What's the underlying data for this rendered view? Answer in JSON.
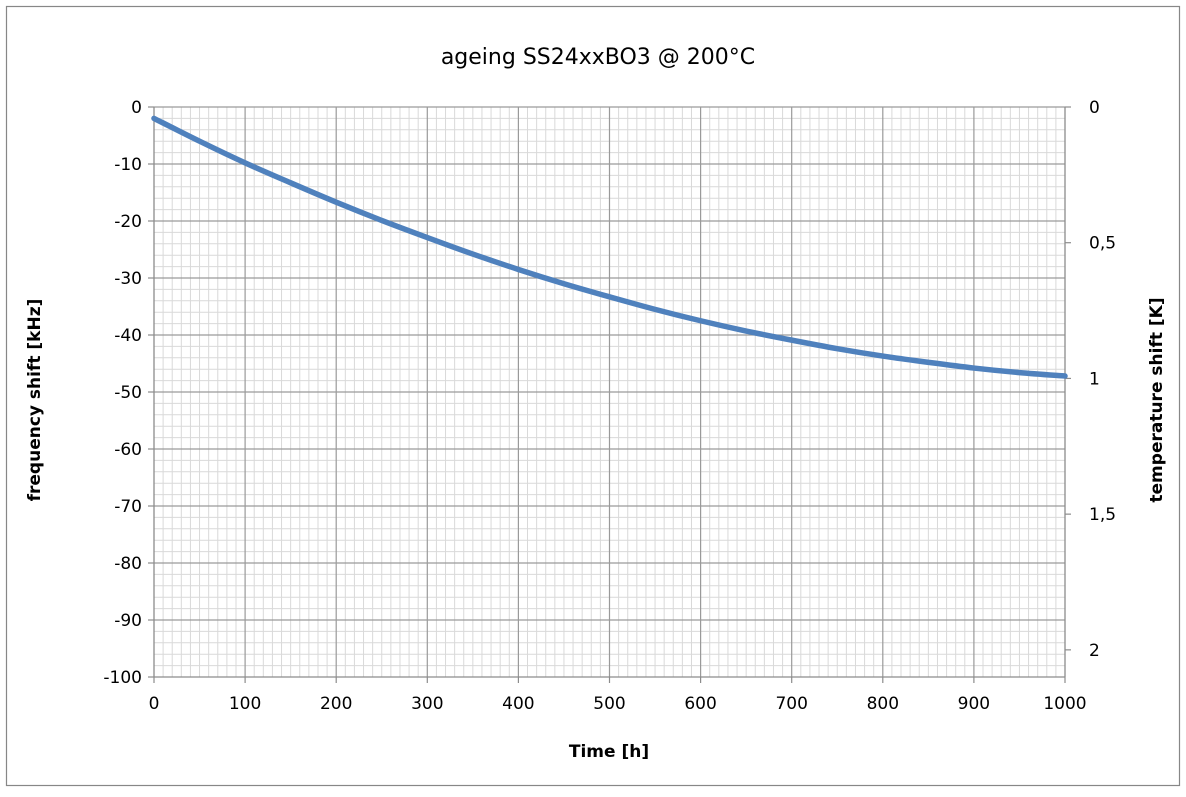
{
  "chart_data": {
    "type": "line",
    "title": "ageing SS24xxBO3 @ 200°C",
    "xlabel": "Time [h]",
    "ylabel": "frequency shift [kHz]",
    "y2label": "temperature shift [K]",
    "xlim": [
      0,
      1000
    ],
    "ylim": [
      -100,
      0
    ],
    "y2lim": [
      2.1,
      0
    ],
    "y2_reversed": true,
    "grid": true,
    "legend": "none",
    "x_ticks": [
      "0",
      "100",
      "200",
      "300",
      "400",
      "500",
      "600",
      "700",
      "800",
      "900",
      "1000"
    ],
    "y_ticks": [
      "0",
      "-10",
      "-20",
      "-30",
      "-40",
      "-50",
      "-60",
      "-70",
      "-80",
      "-90",
      "-100"
    ],
    "y2_ticks": [
      "0",
      "0,5",
      "1",
      "1,5",
      "2"
    ],
    "series_color": "#4f81bd",
    "series": [
      {
        "x": [
          0,
          50,
          100,
          150,
          200,
          250,
          300,
          350,
          400,
          450,
          500,
          550,
          600,
          650,
          700,
          750,
          800,
          850,
          900,
          950,
          1000
        ],
        "y": [
          -2,
          -6,
          -9.8,
          -13.3,
          -16.7,
          -19.9,
          -22.9,
          -25.8,
          -28.5,
          -31.0,
          -33.3,
          -35.5,
          -37.5,
          -39.3,
          -40.9,
          -42.4,
          -43.7,
          -44.8,
          -45.8,
          -46.6,
          -47.2
        ]
      }
    ]
  }
}
